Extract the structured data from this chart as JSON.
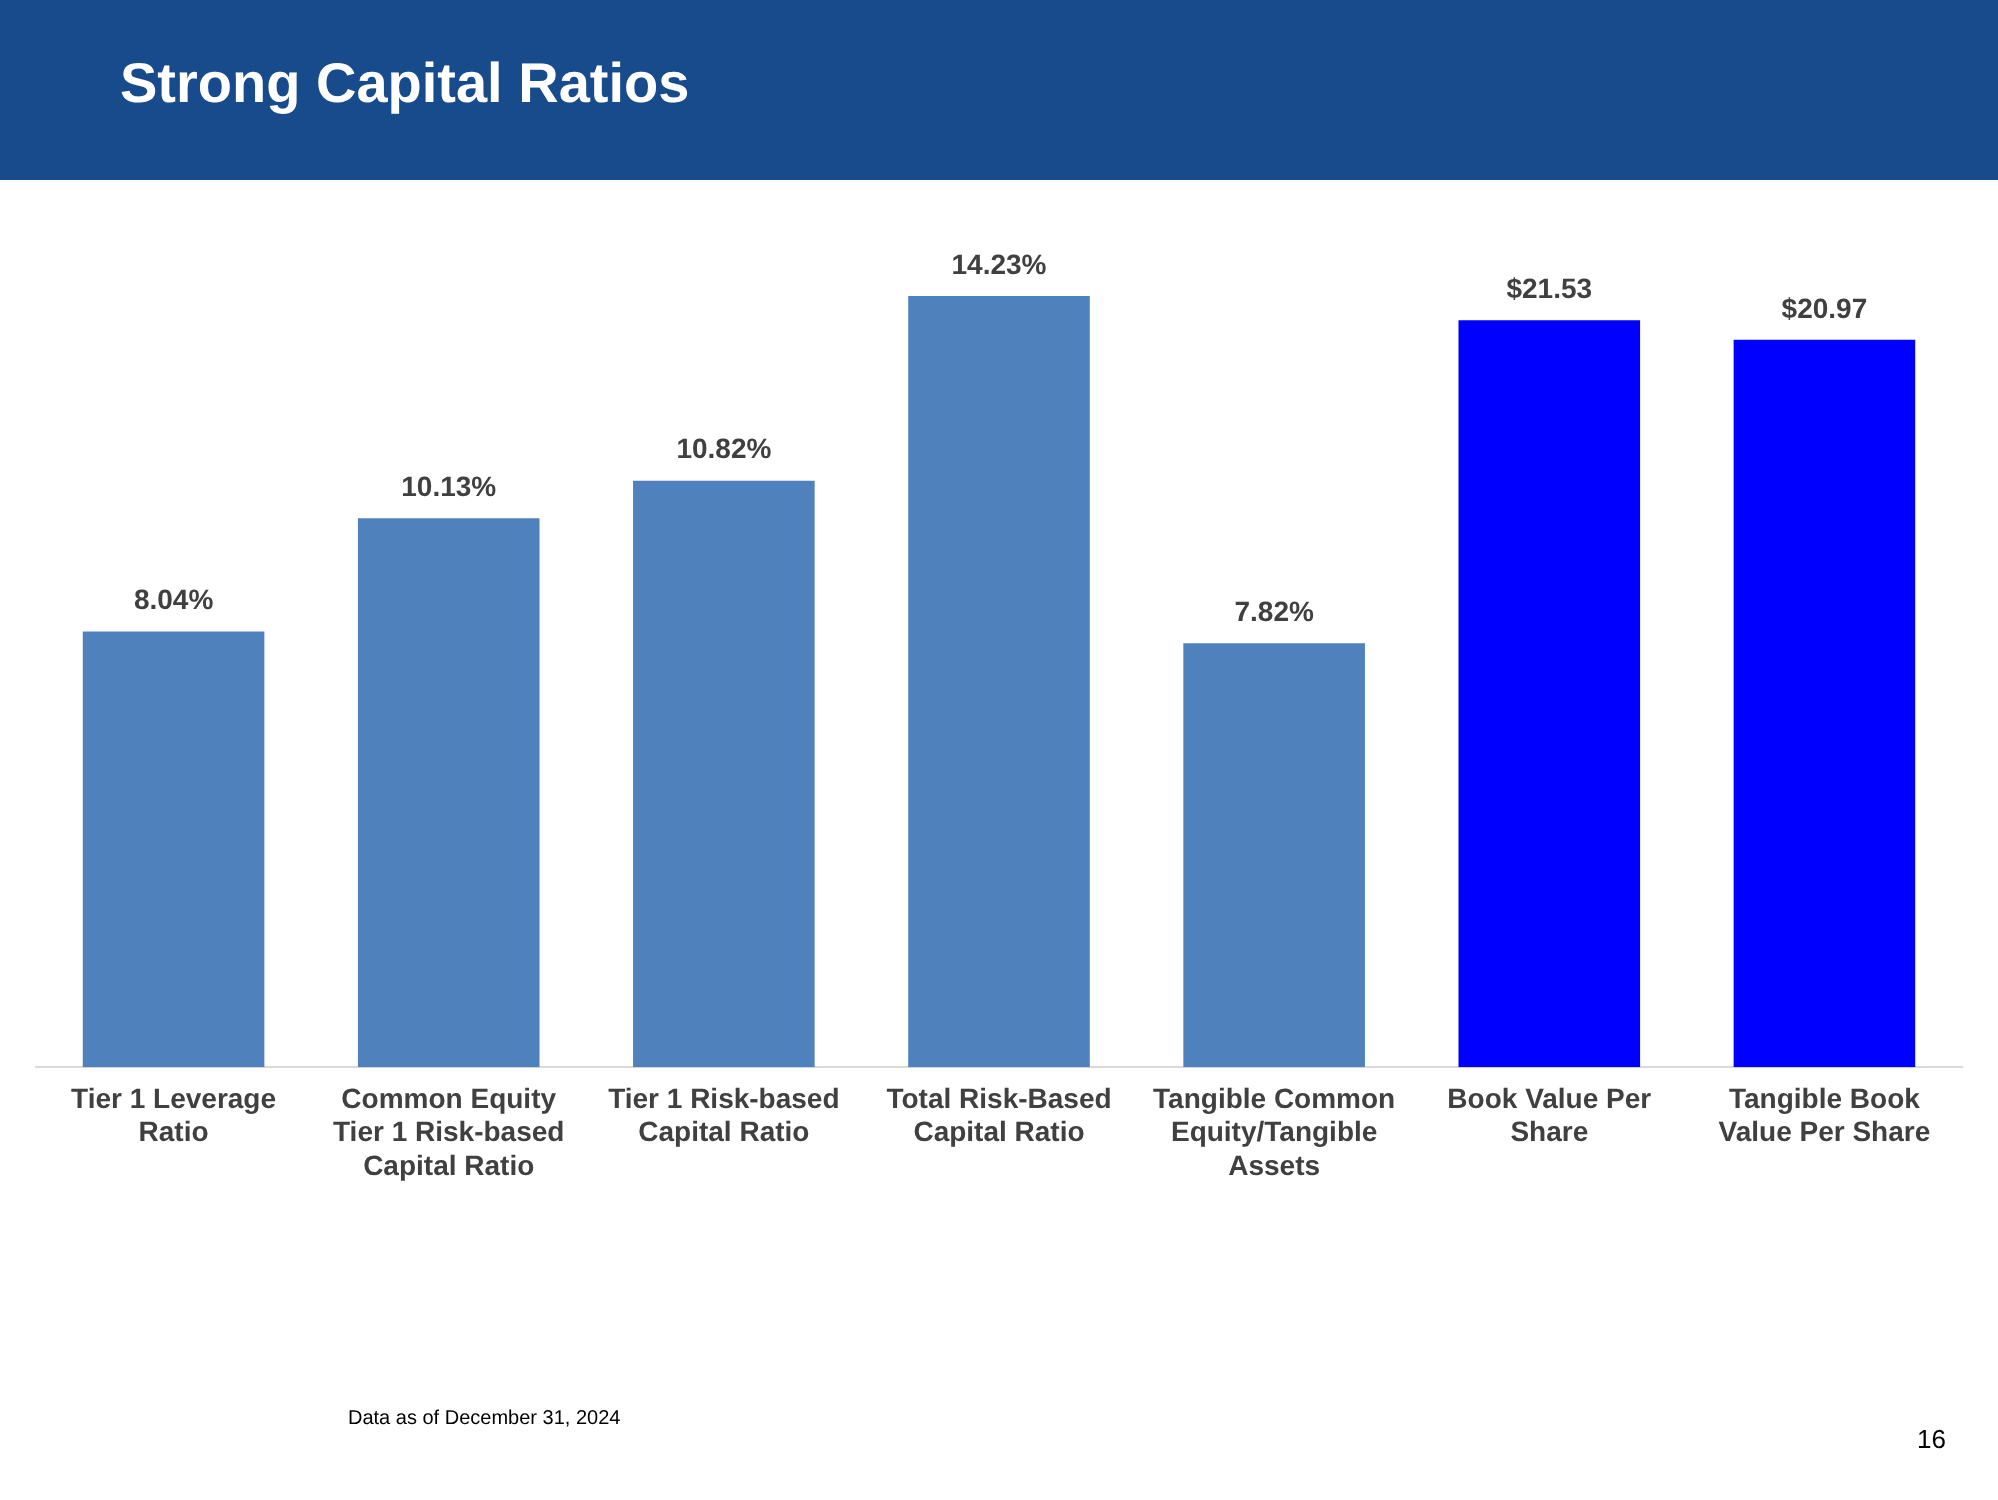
{
  "chart_data": {
    "type": "bar",
    "title": "Strong Capital Ratios",
    "categories": [
      "Tier 1 Leverage Ratio",
      "Common Equity Tier 1 Risk-based Capital Ratio",
      "Tier 1 Risk-based Capital Ratio",
      "Total Risk-Based Capital Ratio",
      "Tangible Common Equity/Tangible Assets",
      "Book Value Per Share",
      "Tangible Book Value Per Share"
    ],
    "series": [
      {
        "color": "#4f81bd",
        "values": [
          8.04,
          10.13,
          10.82,
          14.23,
          7.82,
          null,
          null
        ],
        "value_labels": [
          "8.04%",
          "10.13%",
          "10.82%",
          "14.23%",
          "7.82%",
          null,
          null
        ]
      },
      {
        "color": "#0000ff",
        "axis": "y2",
        "values": [
          null,
          null,
          null,
          null,
          null,
          21.53,
          20.97
        ],
        "value_labels": [
          null,
          null,
          null,
          null,
          null,
          "$21.53",
          "$20.97"
        ]
      }
    ],
    "annotations": [
      "Data as of December 31, 2024",
      "16"
    ]
  }
}
